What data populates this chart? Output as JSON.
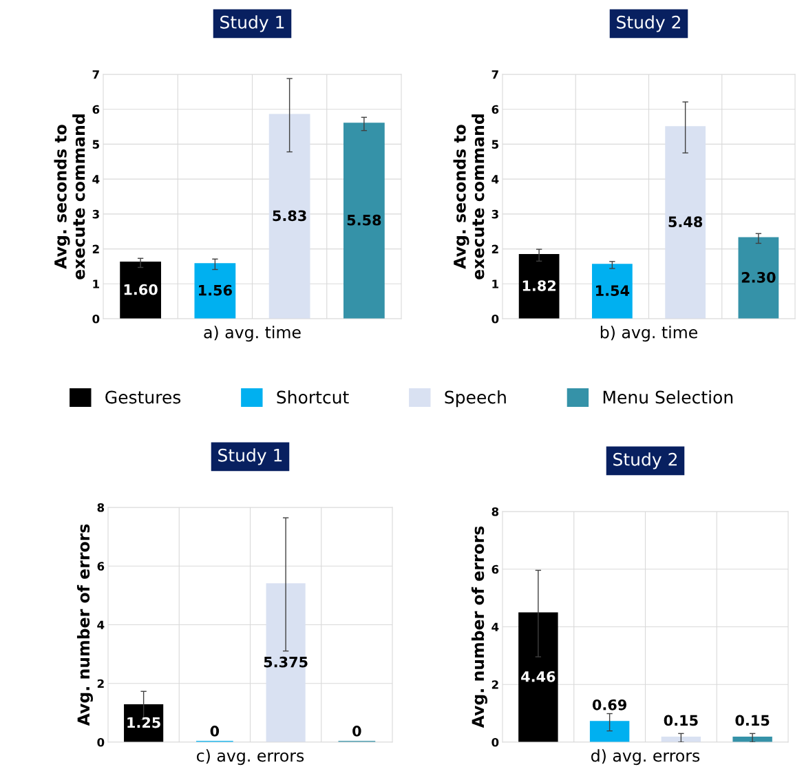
{
  "chart_data": [
    {
      "type": "bar",
      "title": "Study 1",
      "xlabel": "a) avg. time",
      "ylabel": "Avg. seconds to\nexecute command",
      "categories": [
        null
      ],
      "ylim": [
        0,
        7
      ],
      "yticks": [
        0,
        1,
        2,
        3,
        4,
        5,
        6,
        7
      ],
      "grid": true,
      "legend": "bottom",
      "series": [
        {
          "name": "Gestures",
          "color": "#000000",
          "values": [
            1.6
          ],
          "errors": [
            0.13
          ],
          "value_labels": [
            "1.60"
          ]
        },
        {
          "name": "Shortcut",
          "color": "#00b0f0",
          "values": [
            1.56
          ],
          "errors": [
            0.15
          ],
          "value_labels": [
            "1.56"
          ]
        },
        {
          "name": "Speech",
          "color": "#d9e1f2",
          "values": [
            5.83
          ],
          "errors": [
            1.05
          ],
          "value_labels": [
            "5.83"
          ]
        },
        {
          "name": "Menu Selection",
          "color": "#3592a8",
          "values": [
            5.58
          ],
          "errors": [
            0.19
          ],
          "value_labels": [
            "5.58"
          ]
        }
      ]
    },
    {
      "type": "bar",
      "title": "Study 2",
      "xlabel": "b) avg. time",
      "ylabel": "Avg. seconds to\nexecute command",
      "categories": [
        null
      ],
      "ylim": [
        0,
        7
      ],
      "yticks": [
        0,
        1,
        2,
        3,
        4,
        5,
        6,
        7
      ],
      "grid": true,
      "series": [
        {
          "color": "#000000",
          "values": [
            1.82
          ],
          "errors": [
            0.17
          ],
          "value_labels": [
            "1.82"
          ]
        },
        {
          "color": "#00b0f0",
          "values": [
            1.54
          ],
          "errors": [
            0.1
          ],
          "value_labels": [
            "1.54"
          ]
        },
        {
          "color": "#d9e1f2",
          "values": [
            5.48
          ],
          "errors": [
            0.73
          ],
          "value_labels": [
            "5.48"
          ]
        },
        {
          "color": "#3592a8",
          "values": [
            2.3
          ],
          "errors": [
            0.14
          ],
          "value_labels": [
            "2.30"
          ]
        }
      ]
    },
    {
      "type": "bar",
      "title": "Study 1",
      "xlabel": "c) avg. errors",
      "ylabel": "Avg. number of errors",
      "categories": [
        null
      ],
      "ylim": [
        0,
        8
      ],
      "yticks": [
        0,
        2,
        4,
        6,
        8
      ],
      "grid": true,
      "series": [
        {
          "color": "#000000",
          "values": [
            1.25
          ],
          "errors": [
            0.48
          ],
          "value_labels": [
            "1.25"
          ]
        },
        {
          "color": "#00b0f0",
          "values": [
            0
          ],
          "errors": [
            null
          ],
          "value_labels": [
            "0"
          ]
        },
        {
          "color": "#d9e1f2",
          "values": [
            5.375
          ],
          "errors": [
            2.27
          ],
          "value_labels": [
            "5.375"
          ]
        },
        {
          "color": "#3592a8",
          "values": [
            0
          ],
          "errors": [
            null
          ],
          "value_labels": [
            "0"
          ]
        }
      ]
    },
    {
      "type": "bar",
      "title": "Study 2",
      "xlabel": "d) avg. errors",
      "ylabel": "Avg. number of errors",
      "categories": [
        null
      ],
      "ylim": [
        0,
        8
      ],
      "yticks": [
        0,
        2,
        4,
        6,
        8
      ],
      "grid": true,
      "series": [
        {
          "color": "#000000",
          "values": [
            4.46
          ],
          "errors": [
            1.5
          ],
          "value_labels": [
            "4.46"
          ]
        },
        {
          "color": "#00b0f0",
          "values": [
            0.69
          ],
          "errors": [
            0.3
          ],
          "value_labels": [
            "0.69"
          ]
        },
        {
          "color": "#d9e1f2",
          "values": [
            0.15
          ],
          "errors": [
            0.15
          ],
          "value_labels": [
            "0.15"
          ]
        },
        {
          "color": "#3592a8",
          "values": [
            0.15
          ],
          "errors": [
            0.15
          ],
          "value_labels": [
            "0.15"
          ]
        }
      ]
    }
  ]
}
